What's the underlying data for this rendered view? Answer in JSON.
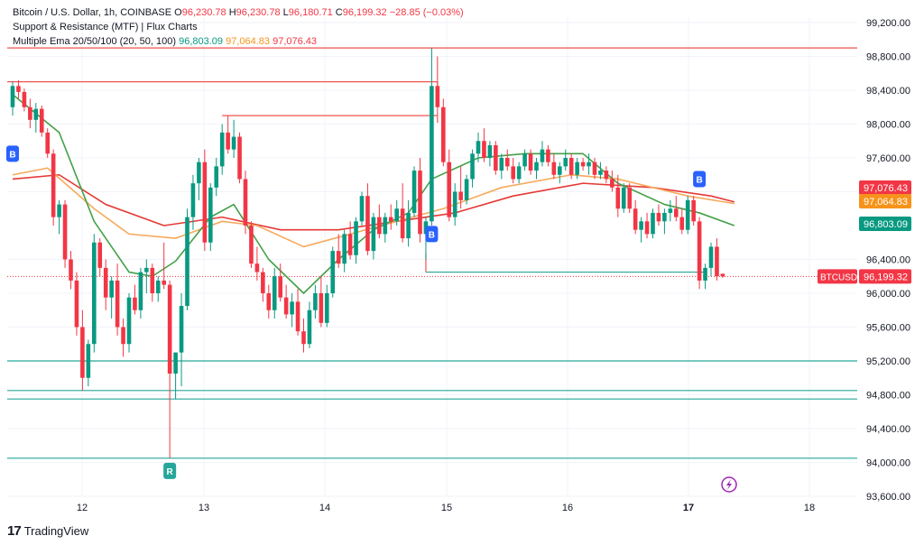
{
  "legend": {
    "symbol": "Bitcoin / U.S. Dollar, 1h, COINBASE",
    "o_label": "O",
    "o_val": "96,230.78",
    "h_label": "H",
    "h_val": "96,230.78",
    "l_label": "L",
    "l_val": "96,180.71",
    "c_label": "C",
    "c_val": "96,199.32",
    "chg": "−28.85 (−0.03%)",
    "indicator1": "Support & Resistance (MTF) | Flux Charts",
    "indicator2_name": "Multiple Ema 20/50/100 (20, 50, 100)",
    "ema20": "96,803.09",
    "ema50": "97,064.83",
    "ema100": "97,076.43"
  },
  "footer": {
    "brand": "TradingView"
  },
  "colors": {
    "up": "#089981",
    "down": "#f23645",
    "ema20": "#43a047",
    "ema50": "#f7a95c",
    "ema100": "#e53935",
    "support": "#26a69a",
    "resistance": "#ef5350",
    "grid": "#f0f3fa"
  },
  "chart_data": {
    "type": "candlestick",
    "x_ticks": [
      "12",
      "13",
      "14",
      "15",
      "16",
      "17",
      "18"
    ],
    "y_ticks": [
      "99,200.00",
      "98,800.00",
      "98,400.00",
      "98,000.00",
      "97,600.00",
      "97,200.00",
      "96,400.00",
      "96,000.00",
      "95,600.00",
      "95,200.00",
      "94,800.00",
      "94,400.00",
      "94,000.00",
      "93,600.00"
    ],
    "y_range": [
      93600,
      99300
    ],
    "price_labels": [
      {
        "text": "97,076.43",
        "value": 97076.43,
        "color": "#f23645"
      },
      {
        "text": "97,064.83",
        "value": 97064.83,
        "color": "#f7931a"
      },
      {
        "text": "96,803.09",
        "value": 96803.09,
        "color": "#089981"
      },
      {
        "text": "96,199.32",
        "value": 96199.32,
        "color": "#f23645",
        "tag": "BTCUSD"
      }
    ],
    "last_price": 96199.32,
    "candles": [
      [
        98200,
        98500,
        98100,
        98450
      ],
      [
        98450,
        98520,
        98300,
        98380
      ],
      [
        98380,
        98420,
        98150,
        98200
      ],
      [
        98200,
        98300,
        97950,
        98050
      ],
      [
        98050,
        98250,
        97900,
        98180
      ],
      [
        98180,
        98220,
        97850,
        97900
      ],
      [
        97900,
        97950,
        97600,
        97650
      ],
      [
        97650,
        97700,
        96800,
        96900
      ],
      [
        96900,
        97100,
        96700,
        97050
      ],
      [
        97050,
        97100,
        96300,
        96400
      ],
      [
        96400,
        96500,
        96050,
        96150
      ],
      [
        96150,
        96250,
        95500,
        95600
      ],
      [
        95600,
        95800,
        94850,
        95000
      ],
      [
        95000,
        95450,
        94900,
        95400
      ],
      [
        95400,
        96700,
        95300,
        96600
      ],
      [
        96600,
        96650,
        96200,
        96300
      ],
      [
        96300,
        96400,
        95800,
        95950
      ],
      [
        95950,
        96200,
        95700,
        96150
      ],
      [
        96150,
        96350,
        95500,
        95600
      ],
      [
        95600,
        95700,
        95250,
        95400
      ],
      [
        95400,
        96000,
        95300,
        95950
      ],
      [
        95950,
        96100,
        95750,
        95800
      ],
      [
        95800,
        96300,
        95700,
        96250
      ],
      [
        96250,
        96400,
        96000,
        96300
      ],
      [
        96300,
        96350,
        95900,
        96000
      ],
      [
        96000,
        96200,
        95900,
        96150
      ],
      [
        96150,
        96600,
        96050,
        96100
      ],
      [
        96100,
        96150,
        94050,
        95050
      ],
      [
        95050,
        95300,
        94750,
        95300
      ],
      [
        95300,
        96000,
        94900,
        95850
      ],
      [
        95850,
        97000,
        95800,
        96900
      ],
      [
        96900,
        97400,
        96750,
        97300
      ],
      [
        97300,
        97600,
        97100,
        97550
      ],
      [
        97550,
        97700,
        96500,
        96600
      ],
      [
        96600,
        97300,
        96500,
        97250
      ],
      [
        97250,
        97600,
        97150,
        97500
      ],
      [
        97500,
        98000,
        97400,
        97900
      ],
      [
        97900,
        98100,
        97650,
        97700
      ],
      [
        97700,
        98050,
        97600,
        97850
      ],
      [
        97850,
        97900,
        97300,
        97350
      ],
      [
        97350,
        97450,
        96700,
        96800
      ],
      [
        96800,
        96850,
        96300,
        96350
      ],
      [
        96350,
        96550,
        96150,
        96250
      ],
      [
        96250,
        96300,
        95900,
        96000
      ],
      [
        96000,
        96100,
        95700,
        95800
      ],
      [
        95800,
        96300,
        95700,
        96200
      ],
      [
        96200,
        96350,
        95900,
        95950
      ],
      [
        95950,
        96100,
        95700,
        95750
      ],
      [
        95750,
        96000,
        95600,
        95900
      ],
      [
        95900,
        96050,
        95500,
        95550
      ],
      [
        95550,
        95700,
        95300,
        95400
      ],
      [
        95400,
        95900,
        95350,
        95800
      ],
      [
        95800,
        96100,
        95700,
        96000
      ],
      [
        96000,
        96200,
        95600,
        95650
      ],
      [
        95650,
        96100,
        95600,
        96000
      ],
      [
        96000,
        96550,
        95950,
        96500
      ],
      [
        96500,
        96700,
        96300,
        96350
      ],
      [
        96350,
        96750,
        96250,
        96700
      ],
      [
        96700,
        96850,
        96400,
        96450
      ],
      [
        96450,
        96900,
        96350,
        96850
      ],
      [
        96850,
        97200,
        96800,
        97150
      ],
      [
        97150,
        97300,
        96450,
        96500
      ],
      [
        96500,
        96950,
        96400,
        96900
      ],
      [
        96900,
        97050,
        96650,
        96700
      ],
      [
        96700,
        96950,
        96600,
        96900
      ],
      [
        96900,
        97050,
        96750,
        96850
      ],
      [
        96850,
        97100,
        96800,
        97000
      ],
      [
        97000,
        97300,
        96600,
        96650
      ],
      [
        96650,
        97100,
        96550,
        96950
      ],
      [
        96950,
        97500,
        96900,
        97450
      ],
      [
        97450,
        97600,
        96600,
        96700
      ],
      [
        96700,
        96900,
        96400,
        96850
      ],
      [
        96850,
        98900,
        96800,
        98450
      ],
      [
        98450,
        98800,
        98100,
        98200
      ],
      [
        98200,
        98300,
        97500,
        97550
      ],
      [
        97550,
        97700,
        96850,
        96900
      ],
      [
        96900,
        97300,
        96800,
        97200
      ],
      [
        97200,
        97500,
        97000,
        97100
      ],
      [
        97100,
        97400,
        97050,
        97350
      ],
      [
        97350,
        97700,
        97250,
        97650
      ],
      [
        97650,
        97900,
        97550,
        97800
      ],
      [
        97800,
        97950,
        97550,
        97600
      ],
      [
        97600,
        97800,
        97500,
        97750
      ],
      [
        97750,
        97800,
        97400,
        97450
      ],
      [
        97450,
        97650,
        97350,
        97600
      ],
      [
        97600,
        97700,
        97450,
        97500
      ],
      [
        97500,
        97600,
        97300,
        97350
      ],
      [
        97350,
        97550,
        97300,
        97500
      ],
      [
        97500,
        97700,
        97450,
        97650
      ],
      [
        97650,
        97700,
        97400,
        97450
      ],
      [
        97450,
        97600,
        97350,
        97550
      ],
      [
        97550,
        97800,
        97500,
        97700
      ],
      [
        97700,
        97750,
        97500,
        97550
      ],
      [
        97550,
        97650,
        97350,
        97400
      ],
      [
        97400,
        97550,
        97300,
        97500
      ],
      [
        97500,
        97700,
        97450,
        97600
      ],
      [
        97600,
        97650,
        97350,
        97400
      ],
      [
        97400,
        97600,
        97350,
        97550
      ],
      [
        97550,
        97600,
        97450,
        97500
      ],
      [
        97500,
        97650,
        97400,
        97550
      ],
      [
        97550,
        97600,
        97350,
        97400
      ],
      [
        97400,
        97550,
        97350,
        97450
      ],
      [
        97450,
        97500,
        97300,
        97350
      ],
      [
        97350,
        97450,
        97200,
        97250
      ],
      [
        97250,
        97400,
        96900,
        97000
      ],
      [
        97000,
        97300,
        96950,
        97250
      ],
      [
        97250,
        97300,
        96950,
        97000
      ],
      [
        97000,
        97100,
        96700,
        96750
      ],
      [
        96750,
        96900,
        96600,
        96850
      ],
      [
        96850,
        96950,
        96650,
        96700
      ],
      [
        96700,
        97000,
        96650,
        96950
      ],
      [
        96950,
        97050,
        96800,
        96850
      ],
      [
        96850,
        97000,
        96700,
        96950
      ],
      [
        96950,
        97100,
        96850,
        97000
      ],
      [
        97000,
        97150,
        96850,
        96900
      ],
      [
        96900,
        97000,
        96700,
        96750
      ],
      [
        96750,
        97150,
        96700,
        97100
      ],
      [
        97100,
        97150,
        96800,
        96850
      ],
      [
        96850,
        96900,
        96050,
        96150
      ],
      [
        96150,
        96350,
        96050,
        96300
      ],
      [
        96300,
        96600,
        96200,
        96550
      ],
      [
        96550,
        96650,
        96150,
        96200
      ],
      [
        96230.78,
        96230.78,
        96180.71,
        96199.32
      ]
    ],
    "ema20": [
      [
        0,
        98350
      ],
      [
        8,
        97900
      ],
      [
        14,
        96850
      ],
      [
        20,
        96250
      ],
      [
        24,
        96200
      ],
      [
        28,
        96380
      ],
      [
        34,
        96900
      ],
      [
        38,
        97050
      ],
      [
        44,
        96400
      ],
      [
        50,
        96000
      ],
      [
        56,
        96400
      ],
      [
        62,
        96750
      ],
      [
        68,
        96950
      ],
      [
        72,
        97350
      ],
      [
        80,
        97600
      ],
      [
        88,
        97650
      ],
      [
        98,
        97650
      ],
      [
        104,
        97300
      ],
      [
        112,
        97050
      ],
      [
        118,
        96950
      ],
      [
        124,
        96800
      ]
    ],
    "ema50": [
      [
        0,
        97400
      ],
      [
        6,
        97480
      ],
      [
        14,
        97000
      ],
      [
        20,
        96700
      ],
      [
        28,
        96650
      ],
      [
        36,
        96850
      ],
      [
        42,
        96800
      ],
      [
        50,
        96550
      ],
      [
        58,
        96700
      ],
      [
        66,
        96850
      ],
      [
        74,
        97000
      ],
      [
        84,
        97250
      ],
      [
        96,
        97400
      ],
      [
        104,
        97350
      ],
      [
        116,
        97150
      ],
      [
        124,
        97060
      ]
    ],
    "ema100": [
      [
        0,
        97350
      ],
      [
        8,
        97400
      ],
      [
        16,
        97050
      ],
      [
        26,
        96800
      ],
      [
        36,
        96900
      ],
      [
        46,
        96750
      ],
      [
        56,
        96750
      ],
      [
        66,
        96850
      ],
      [
        76,
        96950
      ],
      [
        86,
        97150
      ],
      [
        98,
        97300
      ],
      [
        110,
        97250
      ],
      [
        120,
        97150
      ],
      [
        124,
        97080
      ]
    ],
    "resistance_levels": [
      {
        "value": 98900,
        "from": 0
      },
      {
        "value": 98500,
        "from": 0,
        "to": 73
      },
      {
        "value": 98100,
        "from": 36,
        "to": 73
      }
    ],
    "support_levels": [
      {
        "value": 96250,
        "from": 71,
        "to": 119
      },
      {
        "value": 95200,
        "from": 0
      },
      {
        "value": 94850,
        "from": 0
      },
      {
        "value": 94750,
        "from": 0
      },
      {
        "value": 94050,
        "from": 0
      }
    ],
    "signals": [
      {
        "text": "B",
        "index": 0,
        "value": 97650,
        "color": "#2962ff"
      },
      {
        "text": "B",
        "index": 72,
        "value": 96700,
        "color": "#2962ff"
      },
      {
        "text": "B",
        "index": 118,
        "value": 97350,
        "color": "#2962ff"
      },
      {
        "text": "R",
        "index": 27,
        "value": 93900,
        "color": "#26a69a"
      }
    ]
  }
}
